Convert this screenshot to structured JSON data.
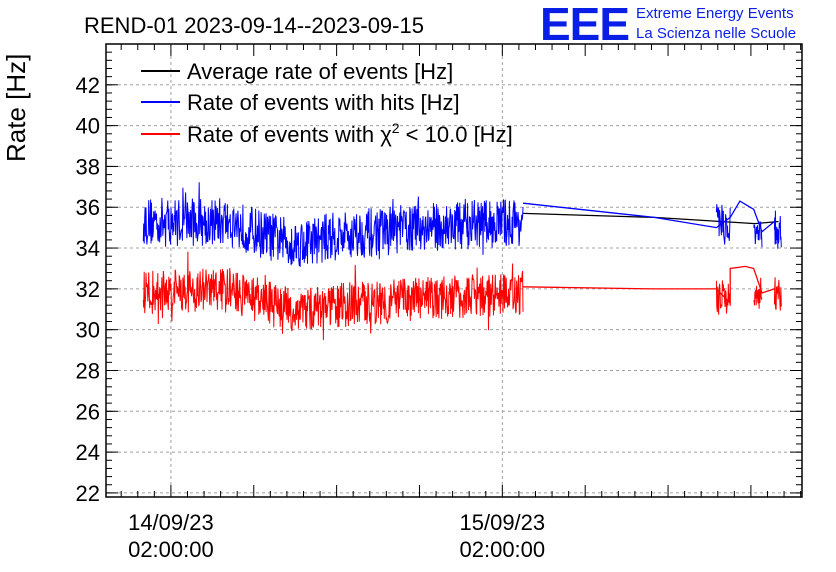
{
  "chart_data": {
    "type": "line",
    "title": "REND-01 2023-09-14--2023-09-15",
    "xlabel": "",
    "ylabel": "Rate [Hz]",
    "ylim": [
      21.8,
      44.0
    ],
    "yticks": [
      22,
      24,
      26,
      28,
      30,
      32,
      34,
      36,
      38,
      40,
      42
    ],
    "xlim_hours": [
      -4.7,
      45.7
    ],
    "x_unit": "hours since 14/09/23 02:00:00",
    "xticks": [
      {
        "hours": 0,
        "date": "14/09/23",
        "time": "02:00:00"
      },
      {
        "hours": 24,
        "date": "15/09/23",
        "time": "02:00:00"
      }
    ],
    "grid": true,
    "legend_position": "top-left",
    "series": [
      {
        "name": "Average rate of events [Hz]",
        "color": "#000000",
        "points": [
          [
            25.5,
            35.7
          ],
          [
            35.0,
            35.5
          ],
          [
            42.3,
            35.2
          ],
          [
            44.0,
            35.3
          ]
        ]
      },
      {
        "name": "Rate of events with hits [Hz]",
        "color": "#0000ff",
        "noisy_segments": [
          {
            "start": -2.0,
            "end": 25.5,
            "baseline_points": [
              [
                -2.0,
                35.3
              ],
              [
                4.0,
                35.3
              ],
              [
                7.0,
                34.6
              ],
              [
                9.0,
                34.2
              ],
              [
                12.0,
                34.6
              ],
              [
                18.0,
                35.0
              ],
              [
                25.5,
                35.3
              ]
            ],
            "amplitude": 1.2
          },
          {
            "start": 39.5,
            "end": 40.5,
            "baseline_points": [
              [
                39.5,
                35.2
              ],
              [
                40.5,
                35.0
              ]
            ],
            "amplitude": 1.0
          },
          {
            "start": 42.2,
            "end": 42.8,
            "baseline_points": [
              [
                42.2,
                34.8
              ],
              [
                42.8,
                34.6
              ]
            ],
            "amplitude": 0.7
          },
          {
            "start": 43.7,
            "end": 44.2,
            "baseline_points": [
              [
                43.7,
                35.0
              ],
              [
                44.2,
                34.8
              ]
            ],
            "amplitude": 0.9
          }
        ],
        "points": [
          [
            25.5,
            36.2
          ],
          [
            35.0,
            35.5
          ],
          [
            39.5,
            35.0
          ],
          [
            40.5,
            35.5
          ],
          [
            41.2,
            36.3
          ],
          [
            42.2,
            35.9
          ],
          [
            42.8,
            34.8
          ],
          [
            43.7,
            35.3
          ]
        ]
      },
      {
        "name": "Rate of events with χ² < 10.0 [Hz]",
        "color": "#ff0000",
        "noisy_segments": [
          {
            "start": -2.0,
            "end": 25.5,
            "baseline_points": [
              [
                -2.0,
                31.8
              ],
              [
                4.0,
                32.0
              ],
              [
                7.0,
                31.3
              ],
              [
                9.0,
                30.9
              ],
              [
                12.0,
                31.2
              ],
              [
                18.0,
                31.5
              ],
              [
                25.5,
                31.8
              ]
            ],
            "amplitude": 1.1
          },
          {
            "start": 39.5,
            "end": 40.5,
            "baseline_points": [
              [
                39.5,
                31.7
              ],
              [
                40.5,
                31.3
              ]
            ],
            "amplitude": 0.9
          },
          {
            "start": 42.2,
            "end": 42.8,
            "baseline_points": [
              [
                42.2,
                31.6
              ],
              [
                42.8,
                31.5
              ]
            ],
            "amplitude": 0.6
          },
          {
            "start": 43.7,
            "end": 44.2,
            "baseline_points": [
              [
                43.7,
                31.8
              ],
              [
                44.2,
                31.6
              ]
            ],
            "amplitude": 0.8
          }
        ],
        "points": [
          [
            25.5,
            32.1
          ],
          [
            35.0,
            32.0
          ],
          [
            39.5,
            32.0
          ],
          [
            40.5,
            31.3
          ],
          [
            40.5,
            33.0
          ],
          [
            41.6,
            33.1
          ],
          [
            42.2,
            33.0
          ],
          [
            42.8,
            31.8
          ],
          [
            43.7,
            32.0
          ]
        ]
      }
    ]
  },
  "legend": {
    "avg": "Average rate of events [Hz]",
    "hits": "Rate of events with hits [Hz]",
    "chi2_prefix": "Rate of events with χ",
    "chi2_sup": "2",
    "chi2_suffix": " < 10.0 [Hz]"
  },
  "logo": {
    "letters": "EEE",
    "line1": "Extreme Energy Events",
    "line2": "La Scienza nelle Scuole"
  }
}
